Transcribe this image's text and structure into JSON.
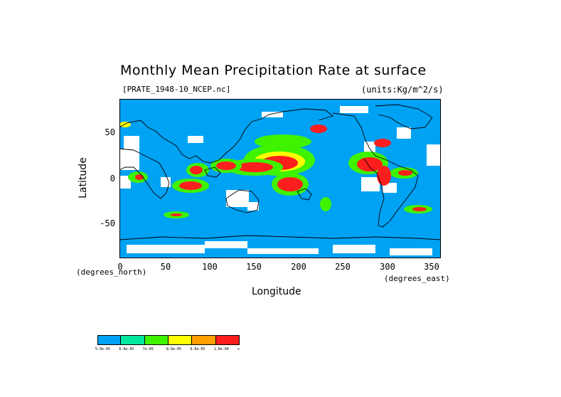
{
  "title": "Monthly Mean Precipitation Rate at surface",
  "file_label": "[PRATE_1948-10_NCEP.nc]",
  "units_label": "(units:Kg/m^2/s)",
  "y_axis": {
    "title": "Latitude",
    "ticks": [
      "50",
      "0",
      "-50"
    ],
    "note": "(degrees_north)"
  },
  "x_axis": {
    "title": "Longitude",
    "ticks": [
      "0",
      "50",
      "100",
      "150",
      "200",
      "250",
      "300",
      "350"
    ],
    "note": "(degrees_east)"
  },
  "map_extent": {
    "lon": [
      0,
      360
    ],
    "lat": [
      -90,
      90
    ]
  },
  "colors": {
    "background_field": "#00a2f3",
    "ocean_fill": "#00a2f3",
    "missing": "#ffffff",
    "coastline": "#000000"
  },
  "colorbar": {
    "colors": [
      "#00a2f3",
      "#00e8a0",
      "#3ff200",
      "#ffff00",
      "#ffa000",
      "#ff1e1e"
    ],
    "labels": [
      "5.0e-05",
      "6.0e-05",
      "7e-05",
      "8.0e-05",
      "9.0e-05",
      "1.0e-04",
      "∞"
    ]
  }
}
